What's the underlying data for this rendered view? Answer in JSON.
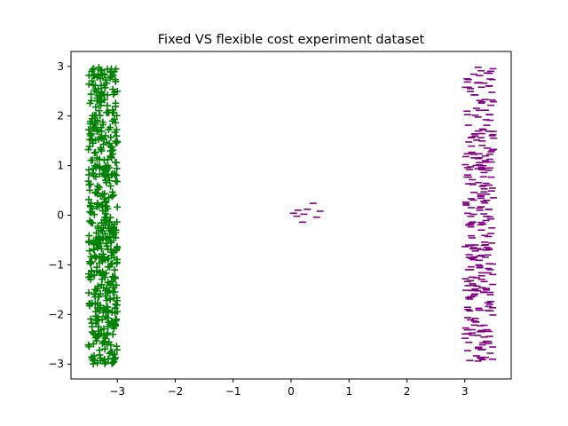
{
  "chart_data": {
    "type": "scatter",
    "title": "Fixed VS flexible cost experiment dataset",
    "xlabel": "",
    "ylabel": "",
    "xlim": [
      -3.8,
      3.8
    ],
    "ylim": [
      -3.3,
      3.3
    ],
    "xticks": [
      -3,
      -2,
      -1,
      0,
      1,
      2,
      3
    ],
    "yticks": [
      -3,
      -2,
      -1,
      0,
      1,
      2,
      3
    ],
    "xtick_labels": [
      "−3",
      "−2",
      "−1",
      "0",
      "1",
      "2",
      "3"
    ],
    "ytick_labels": [
      "−3",
      "−2",
      "−1",
      "0",
      "1",
      "2",
      "3"
    ],
    "grid": false,
    "legend": "none",
    "series": [
      {
        "marker": "plus",
        "color": "#008000",
        "x_range": [
          -3.5,
          -3.0
        ],
        "y_range": [
          -3.0,
          3.0
        ],
        "count": 500
      },
      {
        "marker": "hline",
        "color": "#800080",
        "x_range": [
          3.0,
          3.5
        ],
        "y_range": [
          -3.0,
          3.0
        ],
        "count": 300
      },
      {
        "marker": "hline",
        "color": "#800080",
        "points": [
          [
            0.38,
            0.24
          ],
          [
            0.12,
            0.1
          ],
          [
            0.28,
            0.12
          ],
          [
            0.04,
            0.04
          ],
          [
            0.5,
            0.08
          ],
          [
            0.22,
            0.02
          ],
          [
            0.1,
            -0.02
          ],
          [
            0.44,
            -0.04
          ],
          [
            0.2,
            -0.14
          ]
        ]
      }
    ]
  }
}
